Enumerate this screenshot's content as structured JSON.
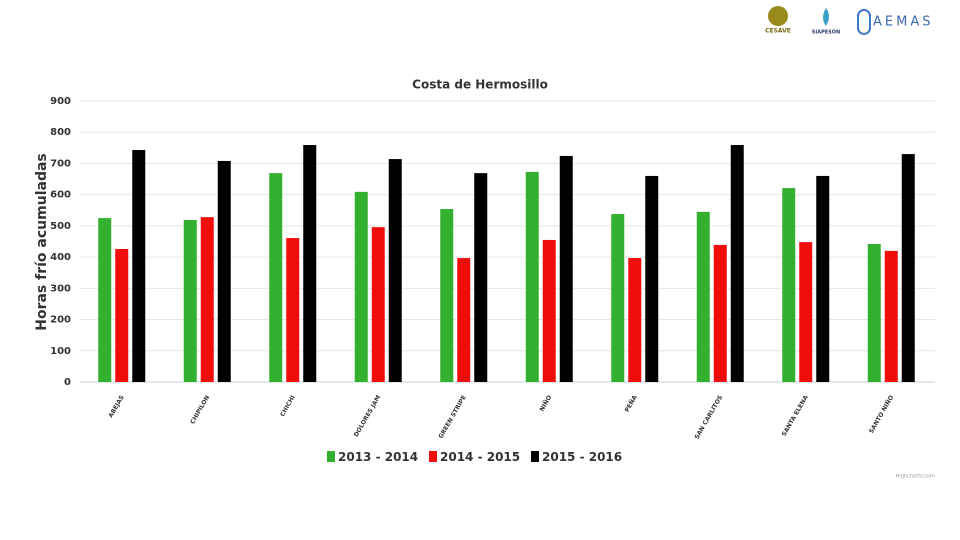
{
  "logos": {
    "first": "CESAVE",
    "second": "SIAPESON",
    "third": "AEMAS"
  },
  "chart_data": {
    "type": "bar",
    "title": "Costa de Hermosillo",
    "y_label": "Horas frío acumuladas",
    "categories": [
      "ABEJAS",
      "CHIPILON",
      "CHICHI",
      "DOLORES JAM",
      "GREEN STRIPE",
      "NIÑO",
      "PEÑA",
      "SAN CARLITOS",
      "SANTA ELENA",
      "SANTO NIÑO"
    ],
    "series": [
      {
        "name": "2013 - 2014",
        "color": "#33b02f",
        "values": [
          525,
          519,
          669,
          609,
          554,
          673,
          538,
          545,
          621,
          442
        ]
      },
      {
        "name": "2014 - 2015",
        "color": "#f20d0d",
        "values": [
          426,
          528,
          461,
          496,
          397,
          455,
          397,
          439,
          448,
          420
        ]
      },
      {
        "name": "2015 - 2016",
        "color": "#000000",
        "values": [
          743,
          708,
          759,
          714,
          669,
          724,
          660,
          759,
          660,
          730
        ]
      }
    ],
    "ylim": [
      0,
      900
    ],
    "yticks": [
      0,
      100,
      200,
      300,
      400,
      500,
      600,
      700,
      800,
      900
    ],
    "grid": true,
    "credit": "Highcharts.com"
  }
}
